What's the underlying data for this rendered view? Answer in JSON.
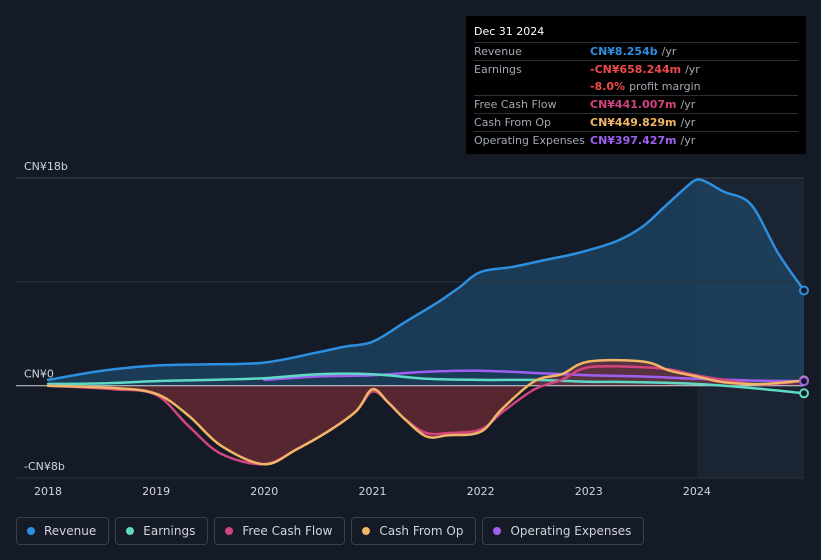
{
  "tooltip": {
    "date": "Dec 31 2024",
    "rows": [
      {
        "label": "Revenue",
        "value": "CN¥8.254b",
        "unit": "/yr",
        "color": "#2d8fe0"
      },
      {
        "label": "Earnings",
        "value": "-CN¥658.244m",
        "unit": "/yr",
        "color": "#ef4a4a"
      },
      {
        "label": "",
        "value": "-8.0%",
        "unit": "profit margin",
        "color": "#ef4a4a"
      },
      {
        "label": "Free Cash Flow",
        "value": "CN¥441.007m",
        "unit": "/yr",
        "color": "#d1447f"
      },
      {
        "label": "Cash From Op",
        "value": "CN¥449.829m",
        "unit": "/yr",
        "color": "#f0b566"
      },
      {
        "label": "Operating Expenses",
        "value": "CN¥397.427m",
        "unit": "/yr",
        "color": "#9f5ff0"
      }
    ]
  },
  "chart_data": {
    "type": "line",
    "ylim": [
      -8,
      18
    ],
    "ylabel_top": "CN¥18b",
    "ylabel_zero": "CN¥0",
    "ylabel_bottom": "-CN¥8b",
    "x_ticks": [
      "2018",
      "2019",
      "2020",
      "2021",
      "2022",
      "2023",
      "2024"
    ],
    "x_tick_values": [
      2018,
      2019,
      2020,
      2021,
      2022,
      2023,
      2024
    ],
    "xlim": [
      2018,
      2024.99
    ],
    "highlight_start": 2024.0,
    "series": [
      {
        "name": "Revenue",
        "color": "#2d8fe0",
        "fill": "#1f4b6e",
        "points": [
          [
            2018,
            0.5
          ],
          [
            2018.5,
            1.3
          ],
          [
            2019,
            1.75
          ],
          [
            2019.5,
            1.85
          ],
          [
            2020,
            2.0
          ],
          [
            2020.5,
            2.9
          ],
          [
            2020.75,
            3.4
          ],
          [
            2021,
            3.8
          ],
          [
            2021.3,
            5.5
          ],
          [
            2021.6,
            7.2
          ],
          [
            2021.8,
            8.5
          ],
          [
            2022,
            9.85
          ],
          [
            2022.3,
            10.3
          ],
          [
            2022.6,
            10.9
          ],
          [
            2022.9,
            11.5
          ],
          [
            2023.25,
            12.5
          ],
          [
            2023.5,
            13.8
          ],
          [
            2023.7,
            15.5
          ],
          [
            2023.9,
            17.2
          ],
          [
            2024,
            17.85
          ],
          [
            2024.1,
            17.6
          ],
          [
            2024.25,
            16.8
          ],
          [
            2024.5,
            15.7
          ],
          [
            2024.75,
            11.5
          ],
          [
            2024.99,
            8.254
          ]
        ]
      },
      {
        "name": "Earnings",
        "color": "#5dd9c4",
        "points": [
          [
            2018,
            0.15
          ],
          [
            2018.5,
            0.2
          ],
          [
            2019,
            0.4
          ],
          [
            2019.5,
            0.5
          ],
          [
            2020,
            0.65
          ],
          [
            2020.5,
            1.0
          ],
          [
            2021,
            1.0
          ],
          [
            2021.5,
            0.6
          ],
          [
            2022,
            0.5
          ],
          [
            2022.5,
            0.5
          ],
          [
            2023,
            0.35
          ],
          [
            2023.5,
            0.3
          ],
          [
            2024,
            0.15
          ],
          [
            2024.5,
            -0.2
          ],
          [
            2024.99,
            -0.658
          ]
        ]
      },
      {
        "name": "Free Cash Flow",
        "color": "#d1447f",
        "points": [
          [
            2018,
            0
          ],
          [
            2018.6,
            -0.3
          ],
          [
            2019,
            -0.8
          ],
          [
            2019.3,
            -3.5
          ],
          [
            2019.6,
            -5.9
          ],
          [
            2020,
            -6.8
          ],
          [
            2020.3,
            -5.5
          ],
          [
            2020.6,
            -3.9
          ],
          [
            2020.85,
            -2.2
          ],
          [
            2021,
            -0.5
          ],
          [
            2021.15,
            -1.5
          ],
          [
            2021.3,
            -2.9
          ],
          [
            2021.5,
            -4.1
          ],
          [
            2021.7,
            -4.1
          ],
          [
            2022,
            -3.8
          ],
          [
            2022.2,
            -2.3
          ],
          [
            2022.5,
            -0.3
          ],
          [
            2022.75,
            0.5
          ],
          [
            2023,
            1.6
          ],
          [
            2023.5,
            1.6
          ],
          [
            2023.75,
            1.4
          ],
          [
            2024,
            0.9
          ],
          [
            2024.25,
            0.5
          ],
          [
            2024.6,
            0.1
          ],
          [
            2024.99,
            0.441
          ]
        ]
      },
      {
        "name": "Cash From Op",
        "color": "#f0b566",
        "fill": "#7a2e35",
        "points": [
          [
            2018,
            0
          ],
          [
            2018.6,
            -0.2
          ],
          [
            2019,
            -0.7
          ],
          [
            2019.3,
            -2.6
          ],
          [
            2019.6,
            -5.2
          ],
          [
            2020,
            -6.8
          ],
          [
            2020.3,
            -5.5
          ],
          [
            2020.6,
            -3.9
          ],
          [
            2020.85,
            -2.2
          ],
          [
            2021,
            -0.3
          ],
          [
            2021.15,
            -1.5
          ],
          [
            2021.3,
            -2.9
          ],
          [
            2021.5,
            -4.4
          ],
          [
            2021.7,
            -4.3
          ],
          [
            2022,
            -4.0
          ],
          [
            2022.2,
            -2.0
          ],
          [
            2022.5,
            0.4
          ],
          [
            2022.75,
            1.0
          ],
          [
            2023,
            2.1
          ],
          [
            2023.5,
            2.1
          ],
          [
            2023.75,
            1.3
          ],
          [
            2024,
            0.8
          ],
          [
            2024.25,
            0.3
          ],
          [
            2024.6,
            0.15
          ],
          [
            2024.99,
            0.45
          ]
        ]
      },
      {
        "name": "Operating Expenses",
        "color": "#9f5ff0",
        "points": [
          [
            2020,
            0.5
          ],
          [
            2020.5,
            0.8
          ],
          [
            2021,
            0.9
          ],
          [
            2021.5,
            1.2
          ],
          [
            2022,
            1.3
          ],
          [
            2022.5,
            1.1
          ],
          [
            2023,
            0.9
          ],
          [
            2023.5,
            0.8
          ],
          [
            2024,
            0.6
          ],
          [
            2024.5,
            0.45
          ],
          [
            2024.99,
            0.397
          ]
        ]
      }
    ]
  },
  "legend": [
    {
      "label": "Revenue",
      "color": "#2d8fe0"
    },
    {
      "label": "Earnings",
      "color": "#5dd9c4"
    },
    {
      "label": "Free Cash Flow",
      "color": "#d1447f"
    },
    {
      "label": "Cash From Op",
      "color": "#f0b566"
    },
    {
      "label": "Operating Expenses",
      "color": "#9f5ff0"
    }
  ]
}
